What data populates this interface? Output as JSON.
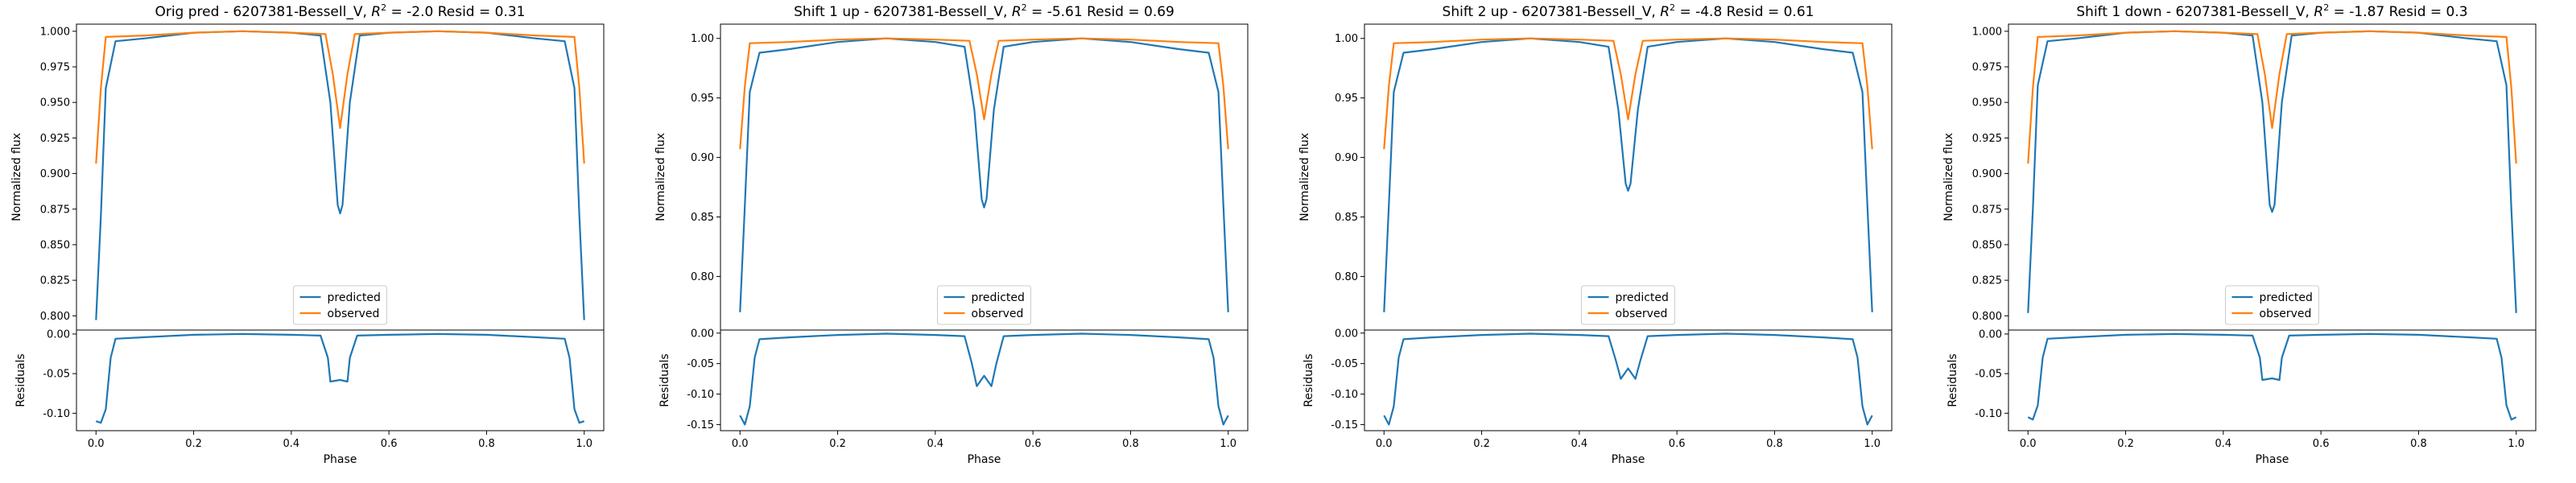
{
  "colors": {
    "predicted": "#1f77b4",
    "observed": "#ff7f0e"
  },
  "chart_data": [
    {
      "type": "line",
      "title": "Orig pred - 6207381-Bessell_V, $R^2 = $-2.0 Resid = 0.31",
      "title_parts": {
        "pre": "Orig pred - 6207381-Bessell_V, ",
        "post": " = -2.0 Resid = 0.31"
      },
      "xlabel": "Phase",
      "xlim": [
        -0.04,
        1.04
      ],
      "xticks": [
        0.0,
        0.2,
        0.4,
        0.6,
        0.8,
        1.0
      ],
      "flux": {
        "ylabel": "Normalized flux",
        "ylim": [
          0.79,
          1.005
        ],
        "yticks": [
          0.8,
          0.825,
          0.85,
          0.875,
          0.9,
          0.925,
          0.95,
          0.975,
          1.0
        ],
        "tick_decimals": 3,
        "legend": {
          "placement": "lower-center",
          "entries": [
            "predicted",
            "observed"
          ]
        },
        "series": [
          {
            "name": "predicted",
            "x": [
              0.0,
              0.01,
              0.02,
              0.04,
              0.1,
              0.2,
              0.3,
              0.4,
              0.46,
              0.48,
              0.495,
              0.5,
              0.505,
              0.52,
              0.54,
              0.6,
              0.7,
              0.8,
              0.9,
              0.96,
              0.98,
              0.99,
              1.0
            ],
            "y": [
              0.797,
              0.87,
              0.96,
              0.993,
              0.995,
              0.999,
              1.0,
              0.999,
              0.997,
              0.95,
              0.878,
              0.872,
              0.878,
              0.95,
              0.997,
              0.999,
              1.0,
              0.999,
              0.995,
              0.993,
              0.96,
              0.87,
              0.797
            ]
          },
          {
            "name": "observed",
            "x": [
              0.0,
              0.01,
              0.02,
              0.1,
              0.2,
              0.3,
              0.4,
              0.47,
              0.485,
              0.5,
              0.515,
              0.53,
              0.6,
              0.7,
              0.8,
              0.9,
              0.98,
              0.99,
              1.0
            ],
            "y": [
              0.907,
              0.96,
              0.996,
              0.997,
              0.999,
              1.0,
              0.999,
              0.998,
              0.97,
              0.932,
              0.97,
              0.998,
              0.999,
              1.0,
              0.999,
              0.997,
              0.996,
              0.96,
              0.907
            ]
          }
        ]
      },
      "residuals": {
        "ylabel": "Residuals",
        "ylim": [
          -0.122,
          0.005
        ],
        "yticks": [
          0.0,
          -0.05,
          -0.1
        ],
        "tick_decimals": 2,
        "series": [
          {
            "name": "predicted",
            "x": [
              0.0,
              0.01,
              0.02,
              0.03,
              0.04,
              0.1,
              0.2,
              0.3,
              0.4,
              0.46,
              0.475,
              0.48,
              0.5,
              0.515,
              0.52,
              0.535,
              0.6,
              0.7,
              0.8,
              0.9,
              0.96,
              0.97,
              0.98,
              0.99,
              1.0
            ],
            "y": [
              -0.11,
              -0.112,
              -0.095,
              -0.03,
              -0.006,
              -0.004,
              -0.001,
              0.0,
              -0.001,
              -0.002,
              -0.03,
              -0.06,
              -0.058,
              -0.06,
              -0.03,
              -0.002,
              -0.001,
              0.0,
              -0.001,
              -0.004,
              -0.006,
              -0.03,
              -0.095,
              -0.112,
              -0.11
            ]
          }
        ]
      }
    },
    {
      "type": "line",
      "title": "Shift 1 up - 6207381-Bessell_V, $R^2 = $-5.61 Resid = 0.69",
      "title_parts": {
        "pre": "Shift 1 up - 6207381-Bessell_V, ",
        "post": " = -5.61 Resid = 0.69"
      },
      "xlabel": "Phase",
      "xlim": [
        -0.04,
        1.04
      ],
      "xticks": [
        0.0,
        0.2,
        0.4,
        0.6,
        0.8,
        1.0
      ],
      "flux": {
        "ylabel": "Normalized flux",
        "ylim": [
          0.755,
          1.012
        ],
        "yticks": [
          0.8,
          0.85,
          0.9,
          0.95,
          1.0
        ],
        "tick_decimals": 2,
        "legend": {
          "placement": "lower-center",
          "entries": [
            "predicted",
            "observed"
          ]
        },
        "series": [
          {
            "name": "predicted",
            "x": [
              0.0,
              0.01,
              0.02,
              0.04,
              0.1,
              0.2,
              0.3,
              0.4,
              0.46,
              0.48,
              0.495,
              0.5,
              0.505,
              0.52,
              0.54,
              0.6,
              0.7,
              0.8,
              0.9,
              0.96,
              0.98,
              0.99,
              1.0
            ],
            "y": [
              0.77,
              0.86,
              0.955,
              0.988,
              0.991,
              0.997,
              1.0,
              0.997,
              0.993,
              0.94,
              0.865,
              0.858,
              0.865,
              0.94,
              0.993,
              0.997,
              1.0,
              0.997,
              0.991,
              0.988,
              0.955,
              0.86,
              0.77
            ]
          },
          {
            "name": "observed",
            "x": [
              0.0,
              0.01,
              0.02,
              0.1,
              0.2,
              0.3,
              0.4,
              0.47,
              0.485,
              0.5,
              0.515,
              0.53,
              0.6,
              0.7,
              0.8,
              0.9,
              0.98,
              0.99,
              1.0
            ],
            "y": [
              0.907,
              0.96,
              0.996,
              0.997,
              0.999,
              1.0,
              0.999,
              0.998,
              0.97,
              0.932,
              0.97,
              0.998,
              0.999,
              1.0,
              0.999,
              0.997,
              0.996,
              0.96,
              0.907
            ]
          }
        ]
      },
      "residuals": {
        "ylabel": "Residuals",
        "ylim": [
          -0.16,
          0.005
        ],
        "yticks": [
          0.0,
          -0.05,
          -0.1,
          -0.15
        ],
        "tick_decimals": 2,
        "series": [
          {
            "name": "predicted",
            "x": [
              0.0,
              0.01,
              0.02,
              0.03,
              0.04,
              0.1,
              0.2,
              0.3,
              0.4,
              0.46,
              0.475,
              0.485,
              0.5,
              0.515,
              0.525,
              0.54,
              0.6,
              0.7,
              0.8,
              0.9,
              0.96,
              0.97,
              0.98,
              0.99,
              1.0
            ],
            "y": [
              -0.135,
              -0.15,
              -0.12,
              -0.04,
              -0.01,
              -0.007,
              -0.003,
              -0.001,
              -0.003,
              -0.005,
              -0.05,
              -0.087,
              -0.07,
              -0.087,
              -0.05,
              -0.005,
              -0.003,
              -0.001,
              -0.003,
              -0.007,
              -0.01,
              -0.04,
              -0.12,
              -0.15,
              -0.135
            ]
          }
        ]
      }
    },
    {
      "type": "line",
      "title": "Shift 2 up - 6207381-Bessell_V, $R^2 = $-4.8 Resid = 0.61",
      "title_parts": {
        "pre": "Shift 2 up - 6207381-Bessell_V, ",
        "post": " = -4.8 Resid = 0.61"
      },
      "xlabel": "Phase",
      "xlim": [
        -0.04,
        1.04
      ],
      "xticks": [
        0.0,
        0.2,
        0.4,
        0.6,
        0.8,
        1.0
      ],
      "flux": {
        "ylabel": "Normalized flux",
        "ylim": [
          0.755,
          1.012
        ],
        "yticks": [
          0.8,
          0.85,
          0.9,
          0.95,
          1.0
        ],
        "tick_decimals": 2,
        "legend": {
          "placement": "lower-center",
          "entries": [
            "predicted",
            "observed"
          ]
        },
        "series": [
          {
            "name": "predicted",
            "x": [
              0.0,
              0.01,
              0.02,
              0.04,
              0.1,
              0.2,
              0.3,
              0.4,
              0.46,
              0.48,
              0.495,
              0.5,
              0.505,
              0.52,
              0.54,
              0.6,
              0.7,
              0.8,
              0.9,
              0.96,
              0.98,
              0.99,
              1.0
            ],
            "y": [
              0.77,
              0.86,
              0.955,
              0.988,
              0.991,
              0.997,
              1.0,
              0.997,
              0.993,
              0.94,
              0.878,
              0.872,
              0.878,
              0.94,
              0.993,
              0.997,
              1.0,
              0.997,
              0.991,
              0.988,
              0.955,
              0.86,
              0.77
            ]
          },
          {
            "name": "observed",
            "x": [
              0.0,
              0.01,
              0.02,
              0.1,
              0.2,
              0.3,
              0.4,
              0.47,
              0.485,
              0.5,
              0.515,
              0.53,
              0.6,
              0.7,
              0.8,
              0.9,
              0.98,
              0.99,
              1.0
            ],
            "y": [
              0.907,
              0.96,
              0.996,
              0.997,
              0.999,
              1.0,
              0.999,
              0.998,
              0.97,
              0.932,
              0.97,
              0.998,
              0.999,
              1.0,
              0.999,
              0.997,
              0.996,
              0.96,
              0.907
            ]
          }
        ]
      },
      "residuals": {
        "ylabel": "Residuals",
        "ylim": [
          -0.16,
          0.005
        ],
        "yticks": [
          0.0,
          -0.05,
          -0.1,
          -0.15
        ],
        "tick_decimals": 2,
        "series": [
          {
            "name": "predicted",
            "x": [
              0.0,
              0.01,
              0.02,
              0.03,
              0.04,
              0.1,
              0.2,
              0.3,
              0.4,
              0.46,
              0.475,
              0.485,
              0.5,
              0.515,
              0.525,
              0.54,
              0.6,
              0.7,
              0.8,
              0.9,
              0.96,
              0.97,
              0.98,
              0.99,
              1.0
            ],
            "y": [
              -0.135,
              -0.15,
              -0.12,
              -0.04,
              -0.01,
              -0.007,
              -0.003,
              -0.001,
              -0.003,
              -0.005,
              -0.045,
              -0.075,
              -0.058,
              -0.075,
              -0.045,
              -0.005,
              -0.003,
              -0.001,
              -0.003,
              -0.007,
              -0.01,
              -0.04,
              -0.12,
              -0.15,
              -0.135
            ]
          }
        ]
      }
    },
    {
      "type": "line",
      "title": "Shift 1 down - 6207381-Bessell_V, $R^2 = $-1.87 Resid = 0.3",
      "title_parts": {
        "pre": "Shift 1 down - 6207381-Bessell_V, ",
        "post": " = -1.87 Resid = 0.3"
      },
      "xlabel": "Phase",
      "xlim": [
        -0.04,
        1.04
      ],
      "xticks": [
        0.0,
        0.2,
        0.4,
        0.6,
        0.8,
        1.0
      ],
      "flux": {
        "ylabel": "Normalized flux",
        "ylim": [
          0.79,
          1.005
        ],
        "yticks": [
          0.8,
          0.825,
          0.85,
          0.875,
          0.9,
          0.925,
          0.95,
          0.975,
          1.0
        ],
        "tick_decimals": 3,
        "legend": {
          "placement": "lower-center",
          "entries": [
            "predicted",
            "observed"
          ]
        },
        "series": [
          {
            "name": "predicted",
            "x": [
              0.0,
              0.01,
              0.02,
              0.04,
              0.1,
              0.2,
              0.3,
              0.4,
              0.46,
              0.48,
              0.495,
              0.5,
              0.505,
              0.52,
              0.54,
              0.6,
              0.7,
              0.8,
              0.9,
              0.96,
              0.98,
              0.99,
              1.0
            ],
            "y": [
              0.802,
              0.875,
              0.962,
              0.993,
              0.995,
              0.999,
              1.0,
              0.999,
              0.997,
              0.95,
              0.878,
              0.873,
              0.878,
              0.95,
              0.997,
              0.999,
              1.0,
              0.999,
              0.995,
              0.993,
              0.962,
              0.875,
              0.802
            ]
          },
          {
            "name": "observed",
            "x": [
              0.0,
              0.01,
              0.02,
              0.1,
              0.2,
              0.3,
              0.4,
              0.47,
              0.485,
              0.5,
              0.515,
              0.53,
              0.6,
              0.7,
              0.8,
              0.9,
              0.98,
              0.99,
              1.0
            ],
            "y": [
              0.907,
              0.96,
              0.996,
              0.997,
              0.999,
              1.0,
              0.999,
              0.998,
              0.97,
              0.932,
              0.97,
              0.998,
              0.999,
              1.0,
              0.999,
              0.997,
              0.996,
              0.96,
              0.907
            ]
          }
        ]
      },
      "residuals": {
        "ylabel": "Residuals",
        "ylim": [
          -0.122,
          0.005
        ],
        "yticks": [
          0.0,
          -0.05,
          -0.1
        ],
        "tick_decimals": 2,
        "series": [
          {
            "name": "predicted",
            "x": [
              0.0,
              0.01,
              0.02,
              0.03,
              0.04,
              0.1,
              0.2,
              0.3,
              0.4,
              0.46,
              0.475,
              0.48,
              0.5,
              0.515,
              0.52,
              0.535,
              0.6,
              0.7,
              0.8,
              0.9,
              0.96,
              0.97,
              0.98,
              0.99,
              1.0
            ],
            "y": [
              -0.105,
              -0.108,
              -0.09,
              -0.03,
              -0.006,
              -0.004,
              -0.001,
              0.0,
              -0.001,
              -0.002,
              -0.03,
              -0.058,
              -0.056,
              -0.058,
              -0.03,
              -0.002,
              -0.001,
              0.0,
              -0.001,
              -0.004,
              -0.006,
              -0.03,
              -0.09,
              -0.108,
              -0.105
            ]
          }
        ]
      }
    }
  ]
}
